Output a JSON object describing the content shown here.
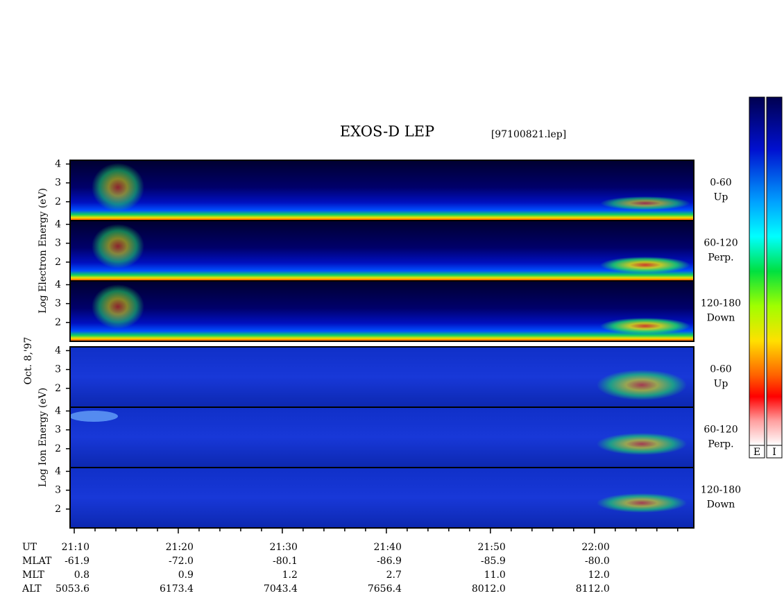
{
  "chart_data": {
    "type": "spectrogram",
    "title": "EXOS-D LEP",
    "subtitle": "[97100821.lep]",
    "date": "Oct. 8,'97",
    "xlim": [
      1269.6,
      1329.55
    ],
    "xticks": [
      {
        "value": 1270,
        "label": "21:10"
      },
      {
        "value": 1280,
        "label": "21:20"
      },
      {
        "value": 1290,
        "label": "21:30"
      },
      {
        "value": 1300,
        "label": "21:40"
      },
      {
        "value": 1310,
        "label": "21:50"
      },
      {
        "value": 1320,
        "label": "22:00"
      }
    ],
    "xminorticks": [
      1272,
      1274,
      1276,
      1278,
      1282,
      1284,
      1286,
      1288,
      1292,
      1294,
      1296,
      1298,
      1302,
      1304,
      1306,
      1308,
      1312,
      1314,
      1316,
      1318,
      1322,
      1324,
      1326,
      1328
    ],
    "ylim": [
      1,
      4.2
    ],
    "yticks": [
      2,
      3,
      4
    ],
    "groups": [
      {
        "name": "Log Electron Energy (eV)",
        "palette": "electron",
        "panels": [
          {
            "pitch": "0-60",
            "direction": "Up"
          },
          {
            "pitch": "60-120",
            "direction": "Perp."
          },
          {
            "pitch": "120-180",
            "direction": "Down"
          }
        ]
      },
      {
        "name": "Log Ion Energy (eV)",
        "palette": "ion",
        "panels": [
          {
            "pitch": "0-60",
            "direction": "Up"
          },
          {
            "pitch": "60-120",
            "direction": "Perp."
          },
          {
            "pitch": "120-180",
            "direction": "Down"
          }
        ]
      }
    ],
    "ephemeris": [
      {
        "label": "UT"
      },
      {
        "label": "MLAT",
        "values": [
          "-61.9",
          "-72.0",
          "-80.1",
          "-86.9",
          "-85.9",
          "-80.0"
        ]
      },
      {
        "label": "MLT",
        "values": [
          "0.8",
          "0.9",
          "1.2",
          "2.7",
          "11.0",
          "12.0"
        ]
      },
      {
        "label": "ALT",
        "values": [
          "5053.6",
          "6173.4",
          "7043.4",
          "7656.4",
          "8012.0",
          "8112.0"
        ]
      }
    ],
    "colorbars": [
      "E",
      "I"
    ]
  }
}
